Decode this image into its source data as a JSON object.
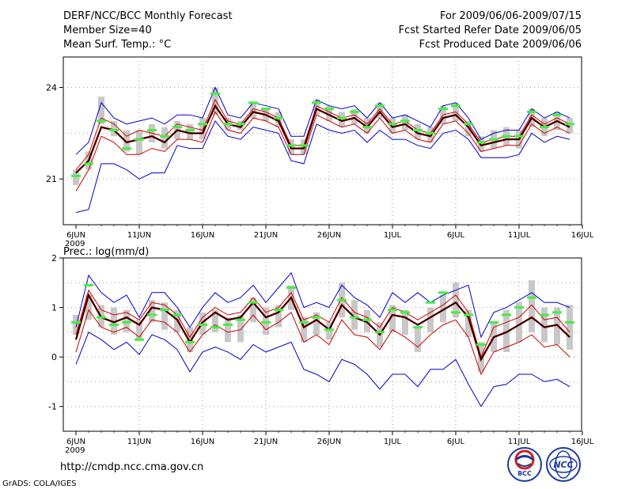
{
  "header": {
    "title": "DERF/NCC/BCC Monthly Forecast",
    "member": "Member Size=40",
    "variable": "Mean Surf. Temp.: °C",
    "period": "For 2009/06/06-2009/07/15",
    "refer": "Fcst Started Refer Date 2009/06/05",
    "produced": "Fcst Produced Date 2009/06/06"
  },
  "footer": {
    "url": "http://cmdp.ncc.cma.gov.cn",
    "credit": "GrADS: COLA/IGES",
    "logo1_text": "BCC",
    "logo2_text": "NCC"
  },
  "colors": {
    "box": "#c8c8c8",
    "obs": "#44ee44",
    "mean": "#000000",
    "mean2": "#aa0000",
    "inner": "#cc0000",
    "outer": "#0000cc",
    "grid": "#999999"
  },
  "chart_data": [
    {
      "type": "line",
      "title": "",
      "ylabel": "",
      "ylim": [
        19.5,
        25.0
      ],
      "yticks": [
        21,
        24
      ],
      "xticks": [
        {
          "day": 0,
          "label": "6JUN",
          "sub": "2009"
        },
        {
          "day": 5,
          "label": "11JUN"
        },
        {
          "day": 10,
          "label": "16JUN"
        },
        {
          "day": 15,
          "label": "21JUN"
        },
        {
          "day": 20,
          "label": "26JUN"
        },
        {
          "day": 25,
          "label": "1JUL"
        },
        {
          "day": 30,
          "label": "6JUL"
        },
        {
          "day": 35,
          "label": "11JUL"
        },
        {
          "day": 40,
          "label": "16JUL"
        }
      ],
      "series": [
        {
          "name": "ensemble-max",
          "role": "outer",
          "values": [
            21.8,
            22.2,
            23.5,
            23.0,
            22.8,
            22.9,
            23.0,
            22.8,
            23.1,
            23.1,
            23.0,
            24.0,
            23.1,
            23.0,
            23.5,
            23.4,
            23.3,
            22.4,
            22.4,
            23.6,
            23.4,
            23.3,
            23.4,
            23.0,
            23.5,
            23.0,
            23.1,
            22.9,
            22.7,
            23.4,
            23.5,
            23.0,
            22.3,
            22.5,
            22.6,
            22.6,
            23.3,
            23.0,
            23.2,
            23.0
          ]
        },
        {
          "name": "ensemble-upper",
          "role": "inner",
          "values": [
            21.3,
            21.8,
            23.0,
            22.8,
            22.4,
            22.6,
            22.5,
            22.4,
            22.8,
            22.7,
            22.6,
            23.6,
            22.9,
            22.8,
            23.3,
            23.2,
            23.0,
            22.1,
            22.1,
            23.4,
            23.2,
            23.0,
            23.1,
            22.8,
            23.3,
            22.8,
            22.9,
            22.6,
            22.5,
            23.1,
            23.2,
            22.8,
            22.2,
            22.3,
            22.4,
            22.4,
            23.1,
            22.8,
            23.0,
            22.8
          ]
        },
        {
          "name": "ensemble-mean",
          "role": "mean",
          "values": [
            21.2,
            21.6,
            22.7,
            22.6,
            22.2,
            22.3,
            22.4,
            22.2,
            22.6,
            22.5,
            22.5,
            23.4,
            22.8,
            22.7,
            23.2,
            23.1,
            22.9,
            22.0,
            22.0,
            23.3,
            23.1,
            22.9,
            23.0,
            22.7,
            23.2,
            22.7,
            22.8,
            22.5,
            22.4,
            23.0,
            23.1,
            22.7,
            22.1,
            22.2,
            22.3,
            22.3,
            23.0,
            22.7,
            22.9,
            22.7
          ]
        },
        {
          "name": "ensemble-lower",
          "role": "inner",
          "values": [
            20.6,
            21.3,
            22.4,
            22.2,
            21.8,
            21.8,
            22.0,
            21.9,
            22.3,
            22.3,
            22.2,
            23.2,
            22.6,
            22.5,
            23.0,
            22.9,
            22.7,
            21.8,
            21.8,
            23.1,
            22.9,
            22.7,
            22.8,
            22.5,
            23.0,
            22.5,
            22.6,
            22.3,
            22.2,
            22.8,
            22.9,
            22.5,
            21.9,
            22.0,
            22.1,
            22.1,
            22.8,
            22.5,
            22.7,
            22.5
          ]
        },
        {
          "name": "ensemble-min",
          "role": "outer",
          "values": [
            19.9,
            20.0,
            21.5,
            21.5,
            21.3,
            21.0,
            21.2,
            21.2,
            22.1,
            22.0,
            22.0,
            22.9,
            22.4,
            22.3,
            22.7,
            22.6,
            22.5,
            21.6,
            21.5,
            22.8,
            22.6,
            22.5,
            22.6,
            22.2,
            22.6,
            22.3,
            22.3,
            22.1,
            22.0,
            22.5,
            22.6,
            22.3,
            21.7,
            21.7,
            21.7,
            21.8,
            22.5,
            22.2,
            22.4,
            22.3
          ]
        }
      ],
      "boxes": [
        [
          20.8,
          21.3
        ],
        [
          21.3,
          21.9
        ],
        [
          22.8,
          23.7
        ],
        [
          22.4,
          22.9
        ],
        [
          21.9,
          22.6
        ],
        [
          21.8,
          22.6
        ],
        [
          22.2,
          22.8
        ],
        [
          22.0,
          22.7
        ],
        [
          22.3,
          22.9
        ],
        [
          22.3,
          22.8
        ],
        [
          22.3,
          23.0
        ],
        [
          23.1,
          24.0
        ],
        [
          22.6,
          23.0
        ],
        [
          22.6,
          22.9
        ],
        [
          23.0,
          23.5
        ],
        [
          22.9,
          23.3
        ],
        [
          22.7,
          23.2
        ],
        [
          21.8,
          22.3
        ],
        [
          21.8,
          22.3
        ],
        [
          23.1,
          23.6
        ],
        [
          22.9,
          23.4
        ],
        [
          22.7,
          23.2
        ],
        [
          22.8,
          23.3
        ],
        [
          22.5,
          23.0
        ],
        [
          23.0,
          23.5
        ],
        [
          22.5,
          23.0
        ],
        [
          22.6,
          23.1
        ],
        [
          22.3,
          22.8
        ],
        [
          22.2,
          22.7
        ],
        [
          22.8,
          23.4
        ],
        [
          22.9,
          23.5
        ],
        [
          22.4,
          22.9
        ],
        [
          21.9,
          22.4
        ],
        [
          22.0,
          22.6
        ],
        [
          22.1,
          22.7
        ],
        [
          22.0,
          22.6
        ],
        [
          22.7,
          23.3
        ],
        [
          22.4,
          23.0
        ],
        [
          22.6,
          23.2
        ],
        [
          22.5,
          23.0
        ]
      ],
      "observed": [
        21.1,
        21.5,
        22.9,
        22.6,
        22.0,
        22.3,
        22.6,
        22.4,
        22.7,
        22.6,
        22.8,
        23.8,
        22.8,
        22.8,
        23.5,
        23.3,
        23.0,
        22.1,
        22.1,
        23.5,
        23.3,
        23.0,
        23.2,
        22.7,
        23.4,
        22.8,
        22.9,
        22.6,
        22.5,
        23.3,
        23.4,
        22.8,
        22.2,
        22.3,
        22.4,
        22.4,
        23.2,
        22.7,
        23.1,
        22.8
      ]
    },
    {
      "type": "line",
      "title": "",
      "ylabel": "Prec.: log(mm/d)",
      "ylim": [
        -1.5,
        2.0
      ],
      "yticks": [
        -1,
        0,
        1,
        2
      ],
      "xticks": [
        {
          "day": 0,
          "label": "6JUN",
          "sub": "2009"
        },
        {
          "day": 5,
          "label": "11JUN"
        },
        {
          "day": 10,
          "label": "16JUN"
        },
        {
          "day": 15,
          "label": "21JUN"
        },
        {
          "day": 20,
          "label": "26JUN"
        },
        {
          "day": 25,
          "label": "1JUL"
        },
        {
          "day": 30,
          "label": "6JUL"
        },
        {
          "day": 35,
          "label": "11JUL"
        },
        {
          "day": 40,
          "label": "16JUL"
        }
      ],
      "series": [
        {
          "name": "ensemble-max",
          "role": "outer",
          "values": [
            0.6,
            1.65,
            1.3,
            1.1,
            1.25,
            0.8,
            1.3,
            1.3,
            1.0,
            0.6,
            1.0,
            1.3,
            1.1,
            1.2,
            1.45,
            1.1,
            1.4,
            1.7,
            1.0,
            1.1,
            1.0,
            1.45,
            1.2,
            1.05,
            0.8,
            1.3,
            1.1,
            1.3,
            1.1,
            1.25,
            1.35,
            1.45,
            0.4,
            0.9,
            1.0,
            1.15,
            1.3,
            1.1,
            1.1,
            1.0
          ]
        },
        {
          "name": "ensemble-upper",
          "role": "inner",
          "values": [
            0.45,
            1.35,
            0.95,
            0.85,
            0.9,
            0.75,
            1.1,
            1.05,
            0.85,
            0.4,
            0.8,
            1.0,
            0.85,
            0.9,
            1.2,
            0.9,
            1.0,
            1.3,
            0.75,
            0.85,
            0.7,
            1.2,
            0.9,
            0.8,
            0.6,
            1.0,
            0.9,
            0.75,
            0.9,
            1.05,
            1.25,
            0.9,
            0.0,
            0.6,
            0.7,
            0.8,
            1.05,
            0.75,
            0.8,
            0.5
          ]
        },
        {
          "name": "ensemble-mean",
          "role": "mean",
          "values": [
            0.35,
            1.25,
            0.8,
            0.7,
            0.8,
            0.65,
            1.0,
            0.95,
            0.75,
            0.3,
            0.7,
            0.9,
            0.75,
            0.8,
            1.1,
            0.8,
            0.9,
            1.2,
            0.6,
            0.75,
            0.55,
            1.05,
            0.8,
            0.7,
            0.45,
            0.85,
            0.8,
            0.65,
            0.8,
            0.95,
            1.1,
            0.8,
            -0.05,
            0.4,
            0.5,
            0.65,
            0.8,
            0.6,
            0.65,
            0.4
          ]
        },
        {
          "name": "ensemble-lower",
          "role": "inner",
          "values": [
            0.1,
            0.95,
            0.6,
            0.5,
            0.6,
            0.4,
            0.75,
            0.7,
            0.5,
            0.1,
            0.45,
            0.65,
            0.5,
            0.55,
            0.85,
            0.55,
            0.7,
            0.9,
            0.3,
            0.45,
            0.25,
            0.75,
            0.45,
            0.4,
            0.15,
            0.55,
            0.4,
            0.2,
            0.45,
            0.65,
            0.75,
            0.4,
            -0.35,
            0.1,
            0.2,
            0.3,
            0.45,
            0.2,
            0.25,
            0.0
          ]
        },
        {
          "name": "ensemble-min",
          "role": "outer",
          "values": [
            -0.15,
            0.5,
            0.35,
            0.15,
            0.3,
            0.05,
            0.45,
            0.35,
            0.15,
            -0.3,
            0.1,
            0.2,
            0.1,
            -0.05,
            0.25,
            0.1,
            0.2,
            0.3,
            -0.25,
            -0.35,
            -0.5,
            -0.05,
            -0.15,
            -0.35,
            -0.65,
            -0.35,
            -0.35,
            -0.6,
            -0.25,
            -0.25,
            -0.05,
            -0.55,
            -1.0,
            -0.6,
            -0.55,
            -0.35,
            -0.35,
            -0.5,
            -0.45,
            -0.6
          ]
        }
      ],
      "boxes": [
        [
          0.45,
          0.85
        ],
        [
          0.75,
          1.25
        ],
        [
          0.6,
          1.05
        ],
        [
          0.45,
          1.0
        ],
        [
          0.5,
          0.95
        ],
        [
          0.35,
          0.75
        ],
        [
          0.7,
          1.15
        ],
        [
          0.55,
          1.1
        ],
        [
          0.5,
          0.95
        ],
        [
          0.1,
          0.6
        ],
        [
          0.45,
          0.9
        ],
        [
          0.5,
          0.95
        ],
        [
          0.3,
          0.8
        ],
        [
          0.3,
          0.85
        ],
        [
          0.7,
          1.2
        ],
        [
          0.45,
          1.0
        ],
        [
          0.6,
          1.05
        ],
        [
          0.95,
          1.45
        ],
        [
          0.3,
          0.8
        ],
        [
          0.45,
          0.9
        ],
        [
          0.35,
          0.7
        ],
        [
          0.8,
          1.5
        ],
        [
          0.55,
          1.15
        ],
        [
          0.5,
          0.95
        ],
        [
          0.2,
          0.7
        ],
        [
          0.5,
          1.05
        ],
        [
          0.45,
          0.95
        ],
        [
          0.1,
          0.6
        ],
        [
          0.5,
          1.0
        ],
        [
          0.7,
          1.25
        ],
        [
          0.8,
          1.5
        ],
        [
          0.4,
          0.95
        ],
        [
          -0.3,
          0.3
        ],
        [
          0.1,
          0.7
        ],
        [
          0.1,
          0.95
        ],
        [
          0.3,
          1.1
        ],
        [
          0.5,
          1.55
        ],
        [
          0.3,
          1.0
        ],
        [
          0.25,
          1.0
        ],
        [
          0.15,
          1.05
        ]
      ],
      "observed": [
        0.7,
        1.45,
        0.8,
        0.65,
        0.7,
        0.35,
        0.85,
        0.95,
        0.85,
        0.3,
        0.65,
        0.6,
        0.65,
        0.75,
        1.1,
        0.7,
        0.95,
        1.4,
        0.7,
        0.8,
        0.55,
        1.15,
        0.8,
        0.75,
        0.5,
        0.95,
        0.9,
        0.6,
        1.1,
        1.3,
        0.9,
        0.85,
        0.25,
        0.7,
        0.85,
        1.0,
        1.2,
        0.85,
        0.9,
        0.7
      ]
    }
  ]
}
